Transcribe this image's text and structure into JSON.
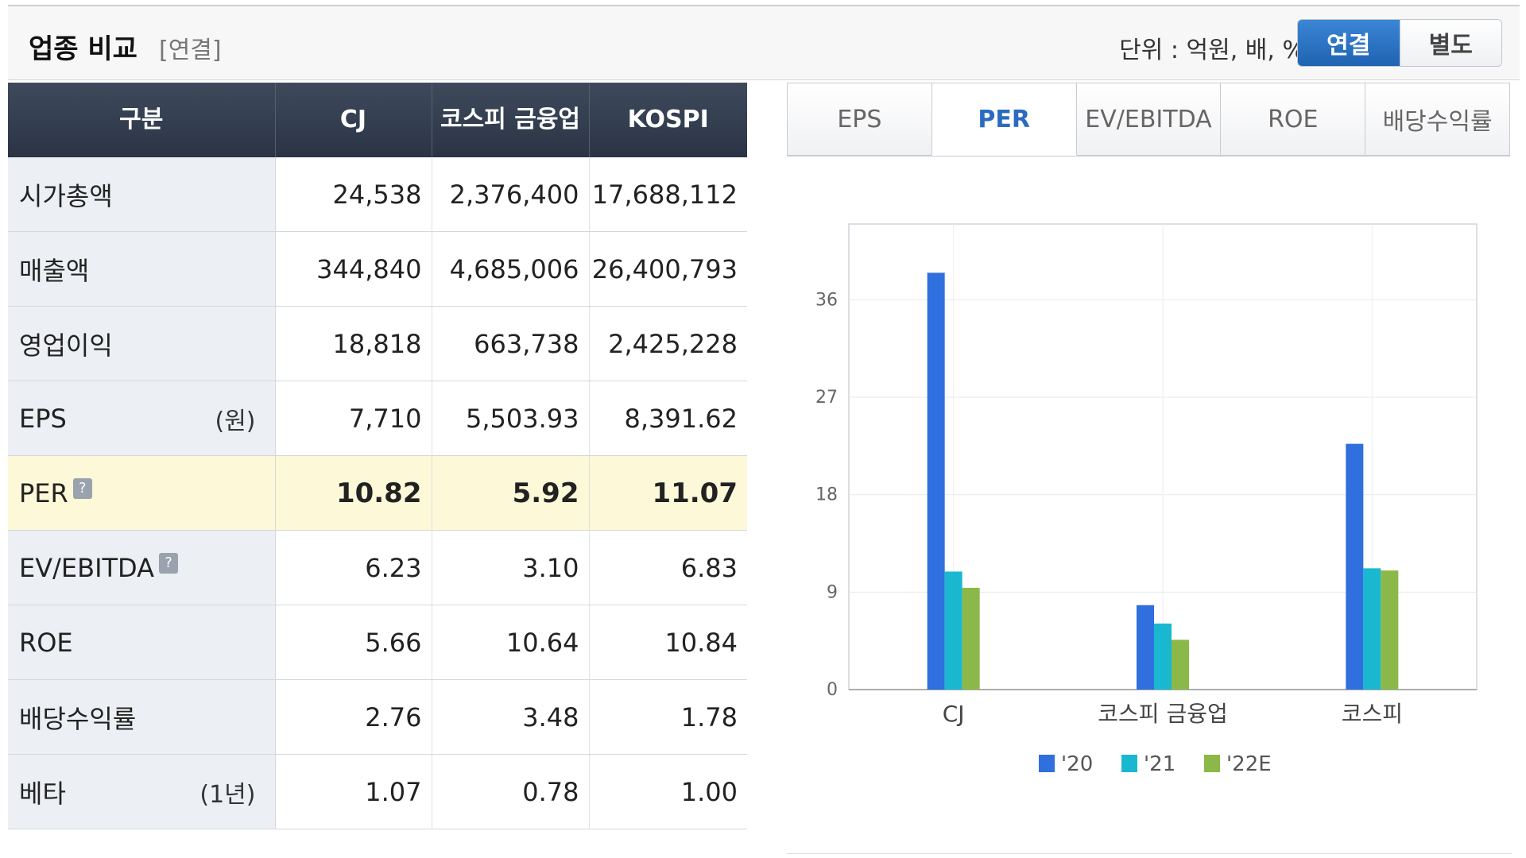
{
  "header": {
    "title": "업종 비교",
    "subtitle": "[연결]",
    "unit": "단위 : 억원, 배, %",
    "toggle": {
      "active": "연결",
      "inactive": "별도"
    }
  },
  "table": {
    "columns": [
      "구분",
      "CJ",
      "코스피 금융업",
      "KOSPI"
    ],
    "rows": [
      {
        "label": "시가총액",
        "suffix": "",
        "values": [
          "24,538",
          "2,376,400",
          "17,688,112"
        ]
      },
      {
        "label": "매출액",
        "suffix": "",
        "values": [
          "344,840",
          "4,685,006",
          "26,400,793"
        ]
      },
      {
        "label": "영업이익",
        "suffix": "",
        "values": [
          "18,818",
          "663,738",
          "2,425,228"
        ]
      },
      {
        "label": "EPS",
        "suffix": "(원)",
        "values": [
          "7,710",
          "5,503.93",
          "8,391.62"
        ]
      },
      {
        "label": "PER",
        "suffix": "",
        "help": "?",
        "highlight": true,
        "values": [
          "10.82",
          "5.92",
          "11.07"
        ]
      },
      {
        "label": "EV/EBITDA",
        "suffix": "",
        "help": "?",
        "values": [
          "6.23",
          "3.10",
          "6.83"
        ]
      },
      {
        "label": "ROE",
        "suffix": "",
        "values": [
          "5.66",
          "10.64",
          "10.84"
        ]
      },
      {
        "label": "배당수익률",
        "suffix": "",
        "values": [
          "2.76",
          "3.48",
          "1.78"
        ]
      },
      {
        "label": "베타",
        "suffix": "(1년)",
        "values": [
          "1.07",
          "0.78",
          "1.00"
        ]
      }
    ]
  },
  "chart_tabs": {
    "items": [
      "EPS",
      "PER",
      "EV/EBITDA",
      "ROE",
      "배당수익률"
    ],
    "active": "PER"
  },
  "chart_data": {
    "type": "bar",
    "categories": [
      "CJ",
      "코스피 금융업",
      "코스피"
    ],
    "series": [
      {
        "name": "'20",
        "color": "#2f6fde",
        "values": [
          38.5,
          7.8,
          22.7
        ]
      },
      {
        "name": "'21",
        "color": "#19b8d0",
        "values": [
          10.9,
          6.1,
          11.2
        ]
      },
      {
        "name": "'22E",
        "color": "#8cb84a",
        "values": [
          9.4,
          4.6,
          11.0
        ]
      }
    ],
    "ylim": [
      0,
      43
    ],
    "yticks": [
      0,
      9,
      18,
      27,
      36
    ],
    "grid": true,
    "legend": "bottom",
    "title": "",
    "xlabel": "",
    "ylabel": ""
  }
}
